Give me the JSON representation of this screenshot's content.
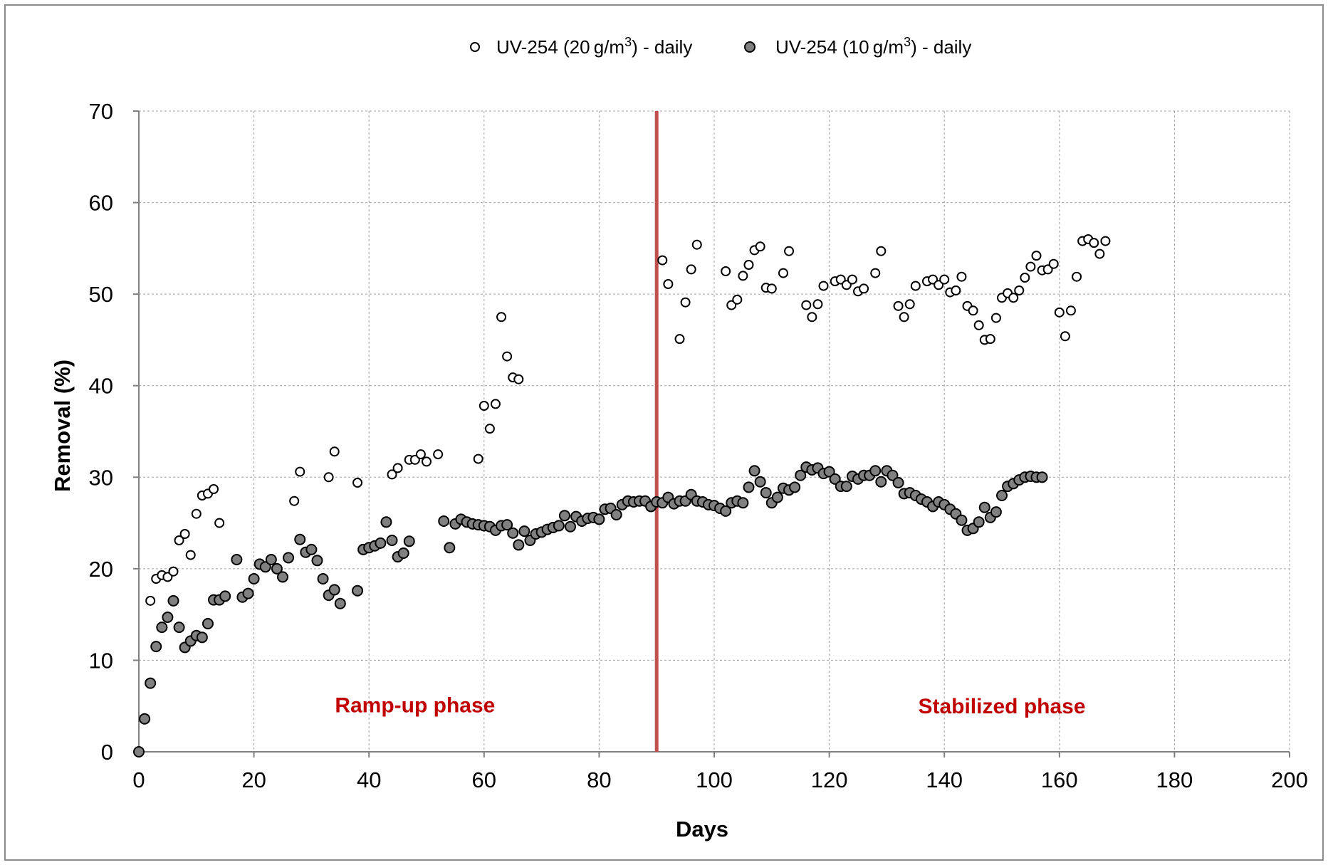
{
  "chart_data": {
    "type": "scatter",
    "xlabel": "Days",
    "ylabel": "Removal (%)",
    "xlim": [
      0,
      200
    ],
    "ylim": [
      0,
      70
    ],
    "xticks": [
      0,
      20,
      40,
      60,
      80,
      100,
      120,
      140,
      160,
      180,
      200
    ],
    "yticks": [
      0,
      10,
      20,
      30,
      40,
      50,
      60,
      70
    ],
    "grid": true,
    "legend_position": "top-center",
    "legend": {
      "s1": {
        "prefix": "UV-254 (20 g/m",
        "sup": "3",
        "suffix": ") - daily"
      },
      "s2": {
        "prefix": "UV-254 (10 g/m",
        "sup": "3",
        "suffix": ") - daily"
      }
    },
    "series": [
      {
        "name": "UV-254 (20 g/m3) - daily",
        "marker_fill": "#ffffff",
        "points": [
          [
            2,
            16.5
          ],
          [
            3,
            18.9
          ],
          [
            4,
            19.3
          ],
          [
            5,
            19.1
          ],
          [
            6,
            19.7
          ],
          [
            7,
            23.1
          ],
          [
            8,
            23.8
          ],
          [
            9,
            21.5
          ],
          [
            10,
            26.0
          ],
          [
            11,
            28.0
          ],
          [
            12,
            28.2
          ],
          [
            13,
            28.7
          ],
          [
            14,
            25.0
          ],
          [
            27,
            27.4
          ],
          [
            28,
            30.6
          ],
          [
            33,
            30.0
          ],
          [
            34,
            32.8
          ],
          [
            38,
            29.4
          ],
          [
            44,
            30.3
          ],
          [
            45,
            31.0
          ],
          [
            47,
            31.9
          ],
          [
            48,
            31.9
          ],
          [
            49,
            32.5
          ],
          [
            50,
            31.7
          ],
          [
            52,
            32.5
          ],
          [
            59,
            32.0
          ],
          [
            60,
            37.8
          ],
          [
            61,
            35.3
          ],
          [
            62,
            38.0
          ],
          [
            63,
            47.5
          ],
          [
            64,
            43.2
          ],
          [
            65,
            40.9
          ],
          [
            66,
            40.7
          ],
          [
            91,
            53.7
          ],
          [
            92,
            51.1
          ],
          [
            94,
            45.1
          ],
          [
            95,
            49.1
          ],
          [
            96,
            52.7
          ],
          [
            97,
            55.4
          ],
          [
            102,
            52.5
          ],
          [
            103,
            48.8
          ],
          [
            104,
            49.4
          ],
          [
            105,
            52.0
          ],
          [
            106,
            53.2
          ],
          [
            107,
            54.8
          ],
          [
            108,
            55.2
          ],
          [
            109,
            50.7
          ],
          [
            110,
            50.6
          ],
          [
            112,
            52.3
          ],
          [
            113,
            54.7
          ],
          [
            116,
            48.8
          ],
          [
            117,
            47.5
          ],
          [
            118,
            48.9
          ],
          [
            119,
            50.9
          ],
          [
            121,
            51.4
          ],
          [
            122,
            51.6
          ],
          [
            123,
            51.0
          ],
          [
            124,
            51.6
          ],
          [
            125,
            50.3
          ],
          [
            126,
            50.6
          ],
          [
            128,
            52.3
          ],
          [
            129,
            54.7
          ],
          [
            132,
            48.7
          ],
          [
            133,
            47.5
          ],
          [
            134,
            48.9
          ],
          [
            135,
            50.9
          ],
          [
            137,
            51.4
          ],
          [
            138,
            51.6
          ],
          [
            139,
            51.0
          ],
          [
            140,
            51.6
          ],
          [
            141,
            50.2
          ],
          [
            142,
            50.4
          ],
          [
            143,
            51.9
          ],
          [
            144,
            48.7
          ],
          [
            145,
            48.2
          ],
          [
            146,
            46.6
          ],
          [
            147,
            45.0
          ],
          [
            148,
            45.1
          ],
          [
            149,
            47.4
          ],
          [
            150,
            49.6
          ],
          [
            151,
            50.1
          ],
          [
            152,
            49.6
          ],
          [
            153,
            50.4
          ],
          [
            154,
            51.8
          ],
          [
            155,
            53.0
          ],
          [
            156,
            54.2
          ],
          [
            157,
            52.6
          ],
          [
            158,
            52.7
          ],
          [
            159,
            53.3
          ],
          [
            160,
            48.0
          ],
          [
            161,
            45.4
          ],
          [
            162,
            48.2
          ],
          [
            163,
            51.9
          ],
          [
            164,
            55.8
          ],
          [
            165,
            56.0
          ],
          [
            166,
            55.6
          ],
          [
            167,
            54.4
          ],
          [
            168,
            55.8
          ]
        ]
      },
      {
        "name": "UV-254 (10 g/m3) - daily",
        "marker_fill": "#808080",
        "points": [
          [
            0,
            0
          ],
          [
            1,
            3.6
          ],
          [
            2,
            7.5
          ],
          [
            3,
            11.5
          ],
          [
            4,
            13.6
          ],
          [
            5,
            14.7
          ],
          [
            6,
            16.5
          ],
          [
            7,
            13.6
          ],
          [
            8,
            11.4
          ],
          [
            9,
            12.1
          ],
          [
            10,
            12.7
          ],
          [
            11,
            12.5
          ],
          [
            12,
            14.0
          ],
          [
            13,
            16.6
          ],
          [
            14,
            16.6
          ],
          [
            15,
            17.0
          ],
          [
            17,
            21.0
          ],
          [
            18,
            16.9
          ],
          [
            19,
            17.3
          ],
          [
            20,
            18.9
          ],
          [
            21,
            20.5
          ],
          [
            22,
            20.2
          ],
          [
            23,
            21.0
          ],
          [
            24,
            20.0
          ],
          [
            25,
            19.1
          ],
          [
            26,
            21.2
          ],
          [
            28,
            23.2
          ],
          [
            29,
            21.8
          ],
          [
            30,
            22.1
          ],
          [
            31,
            20.9
          ],
          [
            32,
            18.9
          ],
          [
            33,
            17.1
          ],
          [
            34,
            17.7
          ],
          [
            35,
            16.2
          ],
          [
            38,
            17.6
          ],
          [
            39,
            22.1
          ],
          [
            40,
            22.3
          ],
          [
            41,
            22.5
          ],
          [
            42,
            22.8
          ],
          [
            43,
            25.1
          ],
          [
            44,
            23.1
          ],
          [
            45,
            21.3
          ],
          [
            46,
            21.7
          ],
          [
            47,
            23.0
          ],
          [
            53,
            25.2
          ],
          [
            54,
            22.3
          ],
          [
            55,
            24.9
          ],
          [
            56,
            25.4
          ],
          [
            57,
            25.1
          ],
          [
            58,
            24.9
          ],
          [
            59,
            24.8
          ],
          [
            60,
            24.7
          ],
          [
            61,
            24.6
          ],
          [
            62,
            24.2
          ],
          [
            63,
            24.7
          ],
          [
            64,
            24.8
          ],
          [
            65,
            23.9
          ],
          [
            66,
            22.6
          ],
          [
            67,
            24.1
          ],
          [
            68,
            23.1
          ],
          [
            69,
            23.8
          ],
          [
            70,
            24.0
          ],
          [
            71,
            24.3
          ],
          [
            72,
            24.5
          ],
          [
            73,
            24.7
          ],
          [
            74,
            25.8
          ],
          [
            75,
            24.6
          ],
          [
            76,
            25.7
          ],
          [
            77,
            25.2
          ],
          [
            78,
            25.5
          ],
          [
            79,
            25.6
          ],
          [
            80,
            25.4
          ],
          [
            81,
            26.5
          ],
          [
            82,
            26.6
          ],
          [
            83,
            25.9
          ],
          [
            84,
            27.0
          ],
          [
            85,
            27.4
          ],
          [
            86,
            27.3
          ],
          [
            87,
            27.4
          ],
          [
            88,
            27.4
          ],
          [
            89,
            26.8
          ],
          [
            90,
            27.3
          ],
          [
            91,
            27.2
          ],
          [
            92,
            27.8
          ],
          [
            93,
            27.1
          ],
          [
            94,
            27.4
          ],
          [
            95,
            27.4
          ],
          [
            96,
            28.1
          ],
          [
            97,
            27.4
          ],
          [
            98,
            27.3
          ],
          [
            99,
            27.0
          ],
          [
            100,
            26.9
          ],
          [
            101,
            26.6
          ],
          [
            102,
            26.3
          ],
          [
            103,
            27.2
          ],
          [
            104,
            27.4
          ],
          [
            105,
            27.2
          ],
          [
            106,
            28.9
          ],
          [
            107,
            30.7
          ],
          [
            108,
            29.5
          ],
          [
            109,
            28.3
          ],
          [
            110,
            27.2
          ],
          [
            111,
            27.8
          ],
          [
            112,
            28.8
          ],
          [
            113,
            28.6
          ],
          [
            114,
            28.9
          ],
          [
            115,
            30.2
          ],
          [
            116,
            31.1
          ],
          [
            117,
            30.8
          ],
          [
            118,
            31.0
          ],
          [
            119,
            30.4
          ],
          [
            120,
            30.6
          ],
          [
            121,
            29.8
          ],
          [
            122,
            29.0
          ],
          [
            123,
            29.0
          ],
          [
            124,
            30.1
          ],
          [
            125,
            29.8
          ],
          [
            126,
            30.2
          ],
          [
            127,
            30.2
          ],
          [
            128,
            30.7
          ],
          [
            129,
            29.5
          ],
          [
            130,
            30.7
          ],
          [
            131,
            30.2
          ],
          [
            132,
            29.4
          ],
          [
            133,
            28.2
          ],
          [
            134,
            28.3
          ],
          [
            135,
            28.0
          ],
          [
            136,
            27.6
          ],
          [
            137,
            27.3
          ],
          [
            138,
            26.8
          ],
          [
            139,
            27.3
          ],
          [
            140,
            27.0
          ],
          [
            141,
            26.5
          ],
          [
            142,
            26.0
          ],
          [
            143,
            25.3
          ],
          [
            144,
            24.2
          ],
          [
            145,
            24.4
          ],
          [
            146,
            25.1
          ],
          [
            147,
            26.7
          ],
          [
            148,
            25.6
          ],
          [
            149,
            26.2
          ],
          [
            150,
            28.0
          ],
          [
            151,
            29.0
          ],
          [
            152,
            29.3
          ],
          [
            153,
            29.7
          ],
          [
            154,
            30.0
          ],
          [
            155,
            30.1
          ],
          [
            156,
            30.0
          ],
          [
            157,
            30.0
          ]
        ]
      }
    ],
    "divider": {
      "x": 90,
      "color": "#c0504d"
    },
    "annotations": [
      {
        "text": "Ramp-up phase",
        "x": 48,
        "y": 4.3,
        "color": "#c00000"
      },
      {
        "text": "Stabilized phase",
        "x": 150,
        "y": 4.2,
        "color": "#c00000"
      }
    ]
  }
}
